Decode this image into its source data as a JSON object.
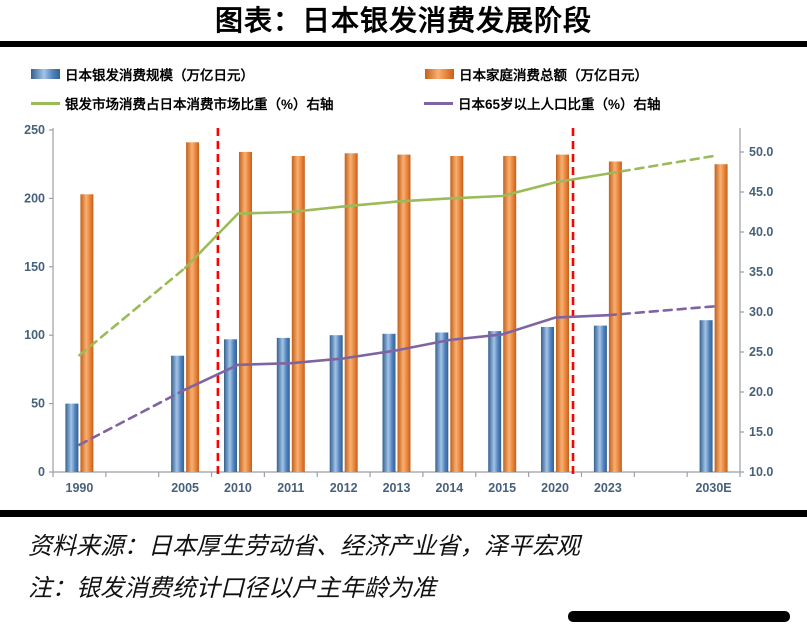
{
  "title": "图表：日本银发消费发展阶段",
  "legend": {
    "items": [
      {
        "label": "日本银发消费规模（万亿日元）",
        "type": "bar",
        "color": "#4f81bd"
      },
      {
        "label": "日本家庭消费总额（万亿日元）",
        "type": "bar",
        "color": "#e8823a"
      },
      {
        "label": "银发市场消费占日本消费市场比重（%）右轴",
        "type": "line",
        "color": "#9bbb59"
      },
      {
        "label": "日本65岁以上人口比重（%）右轴",
        "type": "line",
        "color": "#8064a2"
      }
    ]
  },
  "chart_data": {
    "type": "bar",
    "subtype": "bar-line-combo-dual-axis",
    "categories": [
      "1990",
      "2005",
      "2010",
      "2011",
      "2012",
      "2013",
      "2014",
      "2015",
      "2020",
      "2023",
      "2030E"
    ],
    "x_slots": [
      0.5,
      2.5,
      3.5,
      4.5,
      5.5,
      6.5,
      7.5,
      8.5,
      9.5,
      10.5,
      12.5
    ],
    "total_slots": 13,
    "series": [
      {
        "name": "日本银发消费规模（万亿日元）",
        "type": "bar",
        "axis": "left",
        "values": [
          50,
          85,
          97,
          98,
          100,
          101,
          102,
          103,
          106,
          107,
          111
        ],
        "color": "#4f81bd",
        "color_dark": "#35618f",
        "color_light": "#a3c4e8"
      },
      {
        "name": "日本家庭消费总额（万亿日元）",
        "type": "bar",
        "axis": "left",
        "values": [
          203,
          241,
          234,
          231,
          233,
          232,
          231,
          231,
          232,
          227,
          225
        ],
        "color": "#e8823a",
        "color_dark": "#c2601c",
        "color_light": "#f9b071"
      },
      {
        "name": "银发市场消费占日本消费市场比重（%）右轴",
        "type": "line",
        "axis": "right",
        "values": [
          24.6,
          35.5,
          42.3,
          42.5,
          43.2,
          43.8,
          44.2,
          44.5,
          46.2,
          47.3,
          49.5
        ],
        "color": "#9bbb59",
        "solid_range": [
          1,
          9
        ]
      },
      {
        "name": "日本65岁以上人口比重（%）右轴",
        "type": "line",
        "axis": "right",
        "values": [
          13.4,
          20.3,
          23.4,
          23.6,
          24.2,
          25.2,
          26.5,
          27.2,
          29.3,
          29.6,
          30.7
        ],
        "color": "#8064a2",
        "solid_range": [
          1,
          9
        ]
      }
    ],
    "left_axis": {
      "min": 0,
      "max": 250,
      "ticks": [
        "0",
        "50",
        "100",
        "150",
        "200",
        "250"
      ]
    },
    "right_axis": {
      "min": 10,
      "top_value": 52.75,
      "tick_step": 5,
      "ticks": [
        "10.0",
        "15.0",
        "20.0",
        "25.0",
        "30.0",
        "35.0",
        "40.0",
        "45.0",
        "50.0"
      ]
    },
    "phase_divider_slots": [
      3.12,
      9.84
    ],
    "phase_divider_color": "#ff0000",
    "axis_label_color": "#47617c",
    "axis_line_color": "#9aa0a6",
    "grid": false,
    "legend_position": "top"
  },
  "footer": {
    "source": "资料来源：日本厚生劳动省、经济产业省，泽平宏观",
    "note": "注：银发消费统计口径以户主年龄为准"
  }
}
